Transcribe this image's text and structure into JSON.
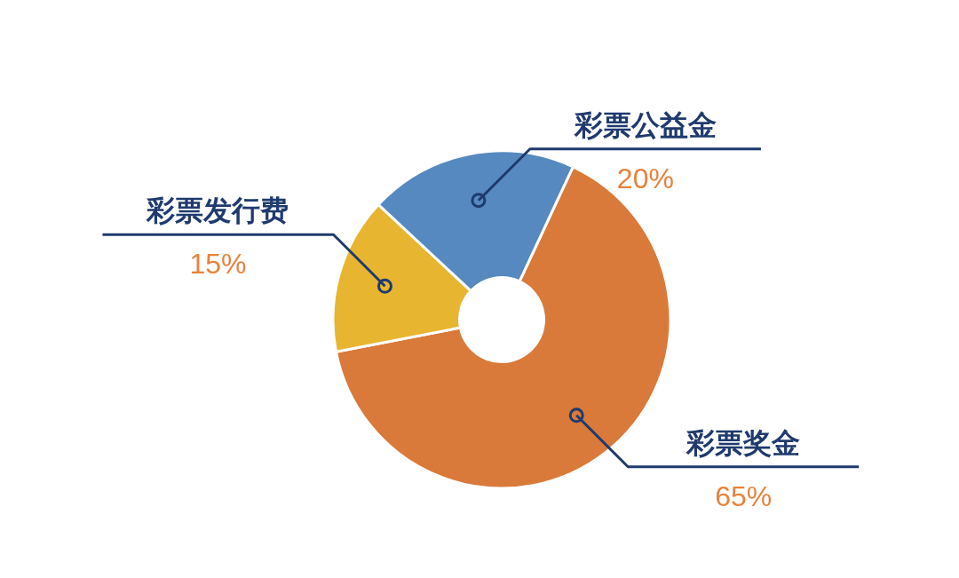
{
  "chart_data": {
    "type": "donut",
    "categories": [
      "彩票奖金",
      "彩票发行费",
      "彩票公益金"
    ],
    "values": [
      65,
      15,
      20
    ],
    "colors": [
      "#d97a3a",
      "#e8b531",
      "#5689bf"
    ],
    "value_labels": [
      "65%",
      "15%",
      "20%"
    ]
  }
}
